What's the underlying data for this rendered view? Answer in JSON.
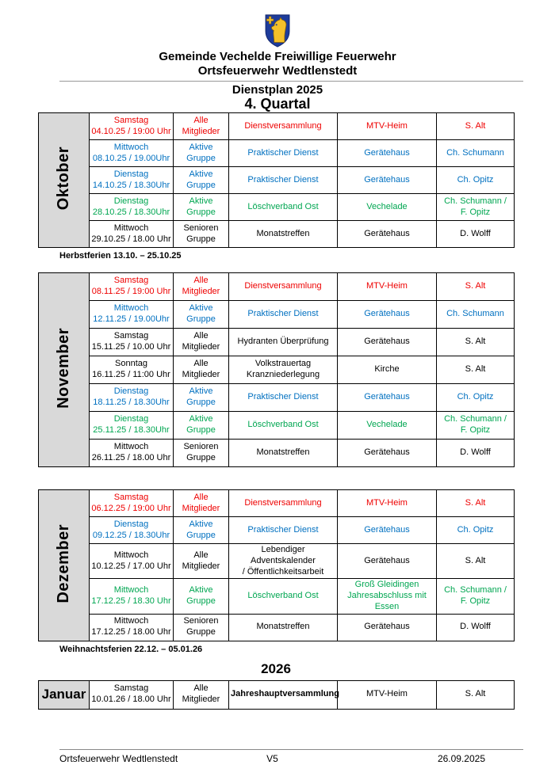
{
  "header": {
    "org_line1": "Gemeinde Vechelde Freiwillige Feuerwehr",
    "org_line2": "Ortsfeuerwehr Wedtlenstedt",
    "plan_title": "Dienstplan 2025",
    "quarter": "4. Quartal"
  },
  "colors": {
    "red": "#ee0000",
    "blue": "#0070c0",
    "green": "#00a651",
    "black": "#000000",
    "month_bg": "#d9d9d9",
    "shield_blue": "#1e3c9b",
    "crest_gold": "#f5c02a"
  },
  "sections": [
    {
      "id": "oktober",
      "label": "Oktober",
      "rotated": true,
      "note": "Herbstferien 13.10. – 25.10.25",
      "rows": [
        {
          "color": "red",
          "date": "Samstag\n04.10.25 / 19:00 Uhr",
          "group": "Alle\nMitglieder",
          "activity": "Dienstversammlung",
          "location": "MTV-Heim",
          "person": "S. Alt"
        },
        {
          "color": "blue",
          "date": "Mittwoch\n08.10.25 / 19.00Uhr",
          "group": "Aktive Gruppe",
          "activity": "Praktischer Dienst",
          "location": "Gerätehaus",
          "person": "Ch. Schumann"
        },
        {
          "color": "blue",
          "date": "Dienstag\n14.10.25 / 18.30Uhr",
          "group": "Aktive Gruppe",
          "activity": "Praktischer Dienst",
          "location": "Gerätehaus",
          "person": "Ch. Opitz"
        },
        {
          "color": "green",
          "date": "Dienstag\n28.10.25 / 18.30Uhr",
          "group": "Aktive Gruppe",
          "activity": "Löschverband Ost",
          "location": "Vechelade",
          "person": "Ch. Schumann /\nF. Opitz"
        },
        {
          "color": "black",
          "date": "Mittwoch\n29.10.25 / 18.00 Uhr",
          "group": "Senioren\nGruppe",
          "activity": "Monatstreffen",
          "location": "Gerätehaus",
          "person": "D. Wolff"
        }
      ]
    },
    {
      "id": "november",
      "label": "November",
      "rotated": true,
      "note": null,
      "rows": [
        {
          "color": "red",
          "date": "Samstag\n08.11.25 / 19:00 Uhr",
          "group": "Alle\nMitglieder",
          "activity": "Dienstversammlung",
          "location": "MTV-Heim",
          "person": "S. Alt"
        },
        {
          "color": "blue",
          "date": "Mittwoch\n12.11.25 / 19.00Uhr",
          "group": "Aktive Gruppe",
          "activity": "Praktischer Dienst",
          "location": "Gerätehaus",
          "person": "Ch. Schumann"
        },
        {
          "color": "black",
          "date": "Samstag\n15.11.25 / 10.00 Uhr",
          "group": "Alle\nMitglieder",
          "activity": "Hydranten Überprüfung",
          "location": "Gerätehaus",
          "person": "S. Alt"
        },
        {
          "color": "black",
          "date": "Sonntag\n16.11.25 / 11:00 Uhr",
          "group": "Alle\nMitglieder",
          "activity": "Volkstrauertag\nKranzniederlegung",
          "location": "Kirche",
          "person": "S. Alt"
        },
        {
          "color": "blue",
          "date": "Dienstag\n18.11.25 / 18.30Uhr",
          "group": "Aktive Gruppe",
          "activity": "Praktischer Dienst",
          "location": "Gerätehaus",
          "person": "Ch. Opitz"
        },
        {
          "color": "green",
          "date": "Dienstag\n25.11.25 / 18.30Uhr",
          "group": "Aktive Gruppe",
          "activity": "Löschverband Ost",
          "location": "Vechelade",
          "person": "Ch. Schumann /\nF. Opitz"
        },
        {
          "color": "black",
          "date": "Mittwoch\n26.11.25 / 18.00 Uhr",
          "group": "Senioren\nGruppe",
          "activity": "Monatstreffen",
          "location": "Gerätehaus",
          "person": "D. Wolff"
        }
      ]
    },
    {
      "id": "dezember",
      "label": "Dezember",
      "rotated": true,
      "note": "Weihnachtsferien 22.12. – 05.01.26",
      "rows": [
        {
          "color": "red",
          "date": "Samstag\n06.12.25 / 19:00 Uhr",
          "group": "Alle\nMitglieder",
          "activity": "Dienstversammlung",
          "location": "MTV-Heim",
          "person": "S. Alt"
        },
        {
          "color": "blue",
          "date": "Dienstag\n09.12.25 / 18.30Uhr",
          "group": "Aktive Gruppe",
          "activity": "Praktischer Dienst",
          "location": "Gerätehaus",
          "person": "Ch. Opitz"
        },
        {
          "color": "black",
          "date": "Mittwoch\n10.12.25 / 17.00 Uhr",
          "group": "Alle\nMitglieder",
          "activity": "Lebendiger Adventskalender\n/ Öffentlichkeitsarbeit",
          "location": "Gerätehaus",
          "person": "S. Alt"
        },
        {
          "color": "green",
          "date": "Mittwoch\n17.12.25 / 18.30 Uhr",
          "group": "Aktive Gruppe",
          "activity": "Löschverband Ost",
          "location": "Groß Gleidingen\nJahresabschluss mit Essen",
          "person": "Ch. Schumann /\nF. Opitz"
        },
        {
          "color": "black",
          "date": "Mittwoch\n17.12.25 / 18.00 Uhr",
          "group": "Senioren\nGruppe",
          "activity": "Monatstreffen",
          "location": "Gerätehaus",
          "person": "D. Wolff"
        }
      ]
    },
    {
      "id": "januar",
      "label": "Januar",
      "rotated": false,
      "heading": "2026",
      "note": null,
      "rows": [
        {
          "color": "black",
          "date": "Samstag\n10.01.26 / 18.00 Uhr",
          "group": "Alle\nMitglieder",
          "activity": "Jahreshauptversammlung",
          "activity_bold": true,
          "location": "MTV-Heim",
          "person": "S. Alt"
        }
      ]
    }
  ],
  "footer": {
    "left": "Ortsfeuerwehr Wedtlenstedt",
    "center": "V5",
    "right": "26.09.2025"
  }
}
